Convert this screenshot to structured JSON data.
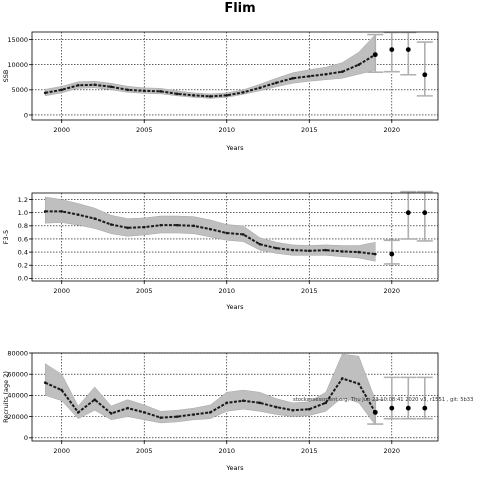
{
  "page": {
    "title": "Flim",
    "watermark": "stockassessment.org, Thu Jun 23 10:08:41 2020 v3, r1551 , git: 5b33"
  },
  "colors": {
    "band": "#bfbfbf",
    "line": "#1a1a1a",
    "point": "#000000",
    "forecast_ci": "#b0b0b0",
    "grid": "#000000"
  },
  "chart_data": [
    {
      "type": "line",
      "title": "",
      "xlabel": "Years",
      "ylabel": "SSB",
      "xlim": [
        1998.2,
        2022.8
      ],
      "ylim": [
        -1000,
        16500
      ],
      "x_ticks": [
        2000,
        2005,
        2010,
        2015,
        2020
      ],
      "y_ticks": [
        0,
        5000,
        10000,
        15000
      ],
      "y_tick_labels": [
        "0",
        "5000",
        "10000",
        "15000"
      ],
      "grid": true,
      "series": [
        {
          "x": [
            1999,
            2000,
            2001,
            2002,
            2003,
            2004,
            2005,
            2006,
            2007,
            2008,
            2009,
            2010,
            2011,
            2012,
            2013,
            2014,
            2015,
            2016,
            2017,
            2018,
            2019
          ],
          "values": [
            4400,
            5000,
            5900,
            6000,
            5600,
            5000,
            4800,
            4700,
            4200,
            3900,
            3700,
            3900,
            4500,
            5400,
            6400,
            7300,
            7700,
            8100,
            8600,
            10000,
            12000
          ],
          "lower": [
            3800,
            4400,
            5300,
            5400,
            5000,
            4500,
            4300,
            4200,
            3800,
            3500,
            3300,
            3500,
            4100,
            4800,
            5600,
            6300,
            6700,
            7000,
            7300,
            8100,
            8900
          ],
          "upper": [
            5100,
            5700,
            6600,
            6700,
            6300,
            5700,
            5400,
            5300,
            4800,
            4400,
            4200,
            4400,
            5000,
            6100,
            7300,
            8400,
            9000,
            9500,
            10400,
            12500,
            16000
          ]
        }
      ],
      "forecast": {
        "x": [
          2019,
          2020,
          2021,
          2022
        ],
        "values": [
          12000,
          13000,
          13000,
          8000
        ],
        "lower": [
          8500,
          8600,
          8000,
          3800
        ],
        "upper": [
          16000,
          16400,
          16400,
          14500
        ]
      }
    },
    {
      "type": "line",
      "title": "",
      "xlabel": "Years",
      "ylabel": "F3-5",
      "xlim": [
        1998.2,
        2022.8
      ],
      "ylim": [
        -0.04,
        1.3
      ],
      "x_ticks": [
        2000,
        2005,
        2010,
        2015,
        2020
      ],
      "y_ticks": [
        0.0,
        0.2,
        0.4,
        0.6,
        0.8,
        1.0,
        1.2
      ],
      "y_tick_labels": [
        "0.0",
        "0.2",
        "0.4",
        "0.6",
        "0.8",
        "1.0",
        "1.2"
      ],
      "grid": true,
      "series": [
        {
          "x": [
            1999,
            2000,
            2001,
            2002,
            2003,
            2004,
            2005,
            2006,
            2007,
            2008,
            2009,
            2010,
            2011,
            2012,
            2013,
            2014,
            2015,
            2016,
            2017,
            2018,
            2019
          ],
          "values": [
            1.02,
            1.02,
            0.97,
            0.91,
            0.82,
            0.77,
            0.78,
            0.81,
            0.81,
            0.8,
            0.75,
            0.69,
            0.67,
            0.52,
            0.46,
            0.43,
            0.42,
            0.43,
            0.41,
            0.4,
            0.37
          ],
          "lower": [
            0.84,
            0.85,
            0.81,
            0.76,
            0.68,
            0.64,
            0.66,
            0.69,
            0.69,
            0.68,
            0.63,
            0.58,
            0.56,
            0.43,
            0.38,
            0.35,
            0.35,
            0.35,
            0.33,
            0.31,
            0.26
          ],
          "upper": [
            1.24,
            1.2,
            1.14,
            1.07,
            0.96,
            0.91,
            0.92,
            0.95,
            0.95,
            0.94,
            0.89,
            0.82,
            0.8,
            0.62,
            0.55,
            0.51,
            0.5,
            0.51,
            0.5,
            0.5,
            0.55
          ]
        }
      ],
      "forecast": {
        "x": [
          2020,
          2021,
          2022
        ],
        "values": [
          0.37,
          1.0,
          1.0
        ],
        "lower": [
          0.22,
          0.6,
          0.57
        ],
        "upper": [
          0.58,
          1.32,
          1.32
        ]
      }
    },
    {
      "type": "line",
      "title": "",
      "xlabel": "Years",
      "ylabel": "Recruits (age 2)",
      "xlim": [
        1998.2,
        2022.8
      ],
      "ylim": [
        -3000,
        80000
      ],
      "x_ticks": [
        2000,
        2005,
        2010,
        2015,
        2020
      ],
      "y_ticks": [
        0,
        20000,
        40000,
        60000,
        80000
      ],
      "y_tick_labels": [
        "0",
        "20000",
        "40000",
        "60000",
        "80000"
      ],
      "grid": true,
      "series": [
        {
          "x": [
            1999,
            2000,
            2001,
            2002,
            2003,
            2004,
            2005,
            2006,
            2007,
            2008,
            2009,
            2010,
            2011,
            2012,
            2013,
            2014,
            2015,
            2016,
            2017,
            2018,
            2019
          ],
          "values": [
            52000,
            45000,
            24000,
            36000,
            23000,
            28000,
            24000,
            19000,
            20000,
            22000,
            24000,
            33000,
            35000,
            33000,
            29000,
            26000,
            27000,
            33000,
            56000,
            51000,
            24000
          ],
          "lower": [
            40000,
            35000,
            18000,
            26000,
            17000,
            20000,
            17000,
            14000,
            15000,
            17000,
            18000,
            25000,
            27000,
            25000,
            22000,
            20000,
            21000,
            25000,
            38000,
            33000,
            12000
          ],
          "upper": [
            70000,
            60000,
            30000,
            48000,
            30000,
            36000,
            31000,
            25000,
            26000,
            28000,
            31000,
            43000,
            45000,
            43000,
            37000,
            33000,
            34000,
            43000,
            79000,
            77000,
            36000
          ]
        }
      ],
      "forecast": {
        "x": [
          2019,
          2020,
          2021,
          2022
        ],
        "values": [
          24000,
          28000,
          28000,
          28000
        ],
        "lower": [
          13000,
          18000,
          18000,
          18000
        ],
        "upper": [
          36000,
          57000,
          57000,
          57000
        ]
      }
    }
  ]
}
